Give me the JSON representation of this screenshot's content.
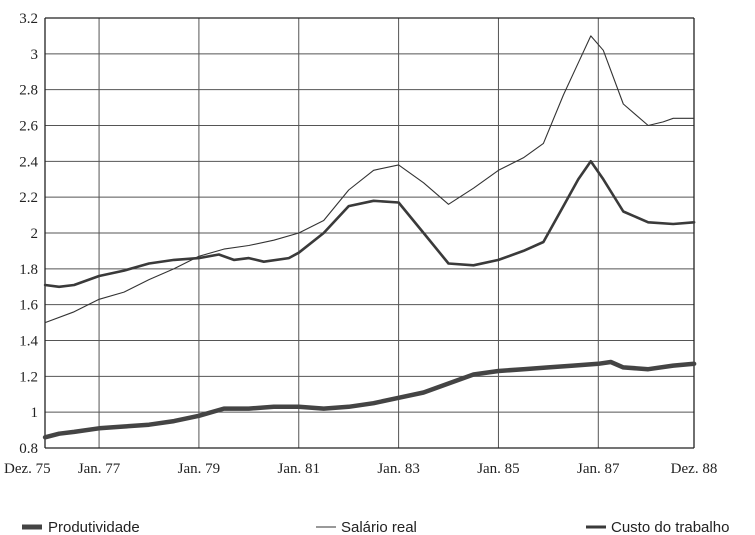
{
  "chart_data": {
    "type": "line",
    "title": "",
    "xlabel": "",
    "ylabel": "",
    "ylim": [
      0.8,
      3.2
    ],
    "yticks": [
      0.8,
      1,
      1.2,
      1.4,
      1.6,
      1.8,
      2,
      2.2,
      2.4,
      2.6,
      2.8,
      3,
      3.2
    ],
    "ytick_labels": [
      "0.8",
      "1",
      "1.2",
      "1.4",
      "1.6",
      "1.8",
      "2",
      "2.2",
      "2.4",
      "2.6",
      "2.8",
      "3",
      "3.2"
    ],
    "xlim": [
      1975.917,
      1988.917
    ],
    "xticks": [
      {
        "value": 1975.917,
        "label": "Dez. 75"
      },
      {
        "value": 1977.0,
        "label": "Jan. 77"
      },
      {
        "value": 1979.0,
        "label": "Jan. 79"
      },
      {
        "value": 1981.0,
        "label": "Jan. 81"
      },
      {
        "value": 1983.0,
        "label": "Jan. 83"
      },
      {
        "value": 1985.0,
        "label": "Jan. 85"
      },
      {
        "value": 1987.0,
        "label": "Jan. 87"
      },
      {
        "value": 1988.917,
        "label": "Dez. 88"
      }
    ],
    "grid": true,
    "legend_position": "bottom",
    "series": [
      {
        "name": "Produtividade",
        "style": "thick",
        "color": "#444444",
        "points": [
          [
            1975.92,
            0.86
          ],
          [
            1976.2,
            0.88
          ],
          [
            1976.5,
            0.89
          ],
          [
            1977.0,
            0.91
          ],
          [
            1977.5,
            0.92
          ],
          [
            1978.0,
            0.93
          ],
          [
            1978.5,
            0.95
          ],
          [
            1979.0,
            0.98
          ],
          [
            1979.5,
            1.02
          ],
          [
            1980.0,
            1.02
          ],
          [
            1980.5,
            1.03
          ],
          [
            1981.0,
            1.03
          ],
          [
            1981.5,
            1.02
          ],
          [
            1982.0,
            1.03
          ],
          [
            1982.5,
            1.05
          ],
          [
            1983.0,
            1.08
          ],
          [
            1983.5,
            1.11
          ],
          [
            1984.0,
            1.16
          ],
          [
            1984.5,
            1.21
          ],
          [
            1985.0,
            1.23
          ],
          [
            1985.5,
            1.24
          ],
          [
            1986.0,
            1.25
          ],
          [
            1986.5,
            1.26
          ],
          [
            1987.0,
            1.27
          ],
          [
            1987.25,
            1.28
          ],
          [
            1987.5,
            1.25
          ],
          [
            1988.0,
            1.24
          ],
          [
            1988.5,
            1.26
          ],
          [
            1988.92,
            1.27
          ]
        ]
      },
      {
        "name": "Salário real",
        "style": "thin",
        "color": "#333333",
        "points": [
          [
            1975.92,
            1.5
          ],
          [
            1976.5,
            1.56
          ],
          [
            1977.0,
            1.63
          ],
          [
            1977.5,
            1.67
          ],
          [
            1978.0,
            1.74
          ],
          [
            1978.5,
            1.8
          ],
          [
            1979.0,
            1.87
          ],
          [
            1979.5,
            1.91
          ],
          [
            1980.0,
            1.93
          ],
          [
            1980.5,
            1.96
          ],
          [
            1981.0,
            2.0
          ],
          [
            1981.5,
            2.07
          ],
          [
            1982.0,
            2.24
          ],
          [
            1982.5,
            2.35
          ],
          [
            1983.0,
            2.38
          ],
          [
            1983.5,
            2.28
          ],
          [
            1984.0,
            2.16
          ],
          [
            1984.5,
            2.25
          ],
          [
            1985.0,
            2.35
          ],
          [
            1985.5,
            2.42
          ],
          [
            1985.9,
            2.5
          ],
          [
            1986.3,
            2.77
          ],
          [
            1986.6,
            2.95
          ],
          [
            1986.85,
            3.1
          ],
          [
            1987.1,
            3.02
          ],
          [
            1987.5,
            2.72
          ],
          [
            1988.0,
            2.6
          ],
          [
            1988.3,
            2.62
          ],
          [
            1988.5,
            2.64
          ],
          [
            1988.92,
            2.64
          ]
        ]
      },
      {
        "name": "Custo do trabalho",
        "style": "medium",
        "color": "#3a3a3a",
        "points": [
          [
            1975.92,
            1.71
          ],
          [
            1976.2,
            1.7
          ],
          [
            1976.5,
            1.71
          ],
          [
            1977.0,
            1.76
          ],
          [
            1977.5,
            1.79
          ],
          [
            1978.0,
            1.83
          ],
          [
            1978.5,
            1.85
          ],
          [
            1979.0,
            1.86
          ],
          [
            1979.4,
            1.88
          ],
          [
            1979.7,
            1.85
          ],
          [
            1980.0,
            1.86
          ],
          [
            1980.3,
            1.84
          ],
          [
            1980.8,
            1.86
          ],
          [
            1981.0,
            1.89
          ],
          [
            1981.5,
            2.0
          ],
          [
            1982.0,
            2.15
          ],
          [
            1982.5,
            2.18
          ],
          [
            1983.0,
            2.17
          ],
          [
            1983.5,
            2.0
          ],
          [
            1984.0,
            1.83
          ],
          [
            1984.5,
            1.82
          ],
          [
            1985.0,
            1.85
          ],
          [
            1985.5,
            1.9
          ],
          [
            1985.9,
            1.95
          ],
          [
            1986.3,
            2.15
          ],
          [
            1986.6,
            2.3
          ],
          [
            1986.85,
            2.4
          ],
          [
            1987.1,
            2.3
          ],
          [
            1987.5,
            2.12
          ],
          [
            1988.0,
            2.06
          ],
          [
            1988.5,
            2.05
          ],
          [
            1988.92,
            2.06
          ]
        ]
      }
    ]
  }
}
